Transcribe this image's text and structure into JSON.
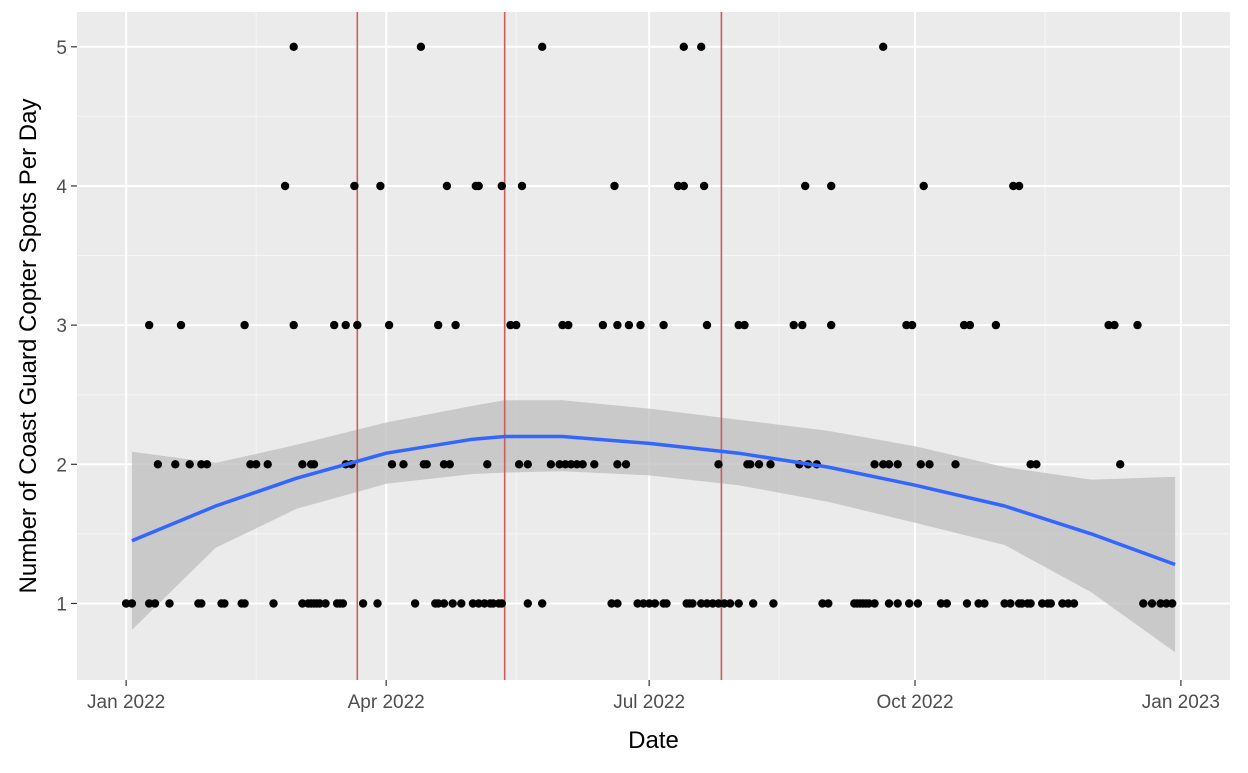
{
  "chart_data": {
    "type": "scatter",
    "xlabel": "Date",
    "ylabel": "Number of Coast Guard Copter Spots Per Day",
    "xlim": [
      "2021-12-15",
      "2023-01-18"
    ],
    "ylim": [
      0.45,
      5.25
    ],
    "x_ticks": [
      {
        "date": "2022-01-01",
        "label": "Jan 2022"
      },
      {
        "date": "2022-04-01",
        "label": "Apr 2022"
      },
      {
        "date": "2022-07-01",
        "label": "Jul 2022"
      },
      {
        "date": "2022-10-01",
        "label": "Oct 2022"
      },
      {
        "date": "2023-01-01",
        "label": "Jan 2023"
      }
    ],
    "x_minor_ticks": [
      "2022-02-15",
      "2022-05-16",
      "2022-08-15",
      "2022-11-15"
    ],
    "y_ticks": [
      1,
      2,
      3,
      4,
      5
    ],
    "grid": true,
    "points_color": "#000000",
    "vlines": {
      "color": "#cd5c5c",
      "dates": [
        "2022-03-22",
        "2022-05-12",
        "2022-07-26"
      ]
    },
    "smooth": {
      "color": "#3366ff",
      "band_color": "#bebebe",
      "x": [
        "2022-01-03",
        "2022-02-01",
        "2022-03-01",
        "2022-04-01",
        "2022-05-01",
        "2022-05-12",
        "2022-06-01",
        "2022-07-01",
        "2022-08-01",
        "2022-09-01",
        "2022-10-01",
        "2022-11-01",
        "2022-12-01",
        "2022-12-30"
      ],
      "y": [
        1.45,
        1.7,
        1.9,
        2.08,
        2.18,
        2.2,
        2.2,
        2.15,
        2.08,
        1.98,
        1.85,
        1.7,
        1.5,
        1.28
      ],
      "lower": [
        0.81,
        1.4,
        1.68,
        1.86,
        1.93,
        1.94,
        1.95,
        1.92,
        1.85,
        1.73,
        1.58,
        1.42,
        1.08,
        0.65
      ],
      "upper": [
        2.09,
        2.01,
        2.14,
        2.3,
        2.42,
        2.46,
        2.46,
        2.4,
        2.32,
        2.24,
        2.13,
        1.98,
        1.89,
        1.91
      ]
    },
    "points": [
      {
        "x": "2022-01-01",
        "y": 1
      },
      {
        "x": "2022-01-03",
        "y": 1
      },
      {
        "x": "2022-01-09",
        "y": 1
      },
      {
        "x": "2022-01-11",
        "y": 1
      },
      {
        "x": "2022-01-16",
        "y": 1
      },
      {
        "x": "2022-01-26",
        "y": 1
      },
      {
        "x": "2022-01-27",
        "y": 1
      },
      {
        "x": "2022-02-03",
        "y": 1
      },
      {
        "x": "2022-02-04",
        "y": 1
      },
      {
        "x": "2022-02-10",
        "y": 1
      },
      {
        "x": "2022-02-11",
        "y": 1
      },
      {
        "x": "2022-02-21",
        "y": 1
      },
      {
        "x": "2022-03-03",
        "y": 1
      },
      {
        "x": "2022-03-05",
        "y": 1
      },
      {
        "x": "2022-03-06",
        "y": 1
      },
      {
        "x": "2022-03-07",
        "y": 1
      },
      {
        "x": "2022-03-08",
        "y": 1
      },
      {
        "x": "2022-03-09",
        "y": 1
      },
      {
        "x": "2022-03-11",
        "y": 1
      },
      {
        "x": "2022-03-15",
        "y": 1
      },
      {
        "x": "2022-03-16",
        "y": 1
      },
      {
        "x": "2022-03-17",
        "y": 1
      },
      {
        "x": "2022-03-24",
        "y": 1
      },
      {
        "x": "2022-03-29",
        "y": 1
      },
      {
        "x": "2022-04-11",
        "y": 1
      },
      {
        "x": "2022-04-18",
        "y": 1
      },
      {
        "x": "2022-04-19",
        "y": 1
      },
      {
        "x": "2022-04-21",
        "y": 1
      },
      {
        "x": "2022-04-24",
        "y": 1
      },
      {
        "x": "2022-04-27",
        "y": 1
      },
      {
        "x": "2022-05-01",
        "y": 1
      },
      {
        "x": "2022-05-03",
        "y": 1
      },
      {
        "x": "2022-05-05",
        "y": 1
      },
      {
        "x": "2022-05-07",
        "y": 1
      },
      {
        "x": "2022-05-08",
        "y": 1
      },
      {
        "x": "2022-05-10",
        "y": 1
      },
      {
        "x": "2022-05-11",
        "y": 1
      },
      {
        "x": "2022-05-20",
        "y": 1
      },
      {
        "x": "2022-05-25",
        "y": 1
      },
      {
        "x": "2022-06-18",
        "y": 1
      },
      {
        "x": "2022-06-20",
        "y": 1
      },
      {
        "x": "2022-06-27",
        "y": 1
      },
      {
        "x": "2022-06-29",
        "y": 1
      },
      {
        "x": "2022-07-01",
        "y": 1
      },
      {
        "x": "2022-07-03",
        "y": 1
      },
      {
        "x": "2022-07-06",
        "y": 1
      },
      {
        "x": "2022-07-07",
        "y": 1
      },
      {
        "x": "2022-07-14",
        "y": 1
      },
      {
        "x": "2022-07-15",
        "y": 1
      },
      {
        "x": "2022-07-16",
        "y": 1
      },
      {
        "x": "2022-07-19",
        "y": 1
      },
      {
        "x": "2022-07-21",
        "y": 1
      },
      {
        "x": "2022-07-23",
        "y": 1
      },
      {
        "x": "2022-07-25",
        "y": 1
      },
      {
        "x": "2022-07-27",
        "y": 1
      },
      {
        "x": "2022-07-29",
        "y": 1
      },
      {
        "x": "2022-08-01",
        "y": 1
      },
      {
        "x": "2022-08-06",
        "y": 1
      },
      {
        "x": "2022-08-13",
        "y": 1
      },
      {
        "x": "2022-08-30",
        "y": 1
      },
      {
        "x": "2022-09-01",
        "y": 1
      },
      {
        "x": "2022-09-10",
        "y": 1
      },
      {
        "x": "2022-09-11",
        "y": 1
      },
      {
        "x": "2022-09-12",
        "y": 1
      },
      {
        "x": "2022-09-13",
        "y": 1
      },
      {
        "x": "2022-09-14",
        "y": 1
      },
      {
        "x": "2022-09-15",
        "y": 1
      },
      {
        "x": "2022-09-17",
        "y": 1
      },
      {
        "x": "2022-09-22",
        "y": 1
      },
      {
        "x": "2022-09-25",
        "y": 1
      },
      {
        "x": "2022-09-29",
        "y": 1
      },
      {
        "x": "2022-10-02",
        "y": 1
      },
      {
        "x": "2022-10-10",
        "y": 1
      },
      {
        "x": "2022-10-12",
        "y": 1
      },
      {
        "x": "2022-10-19",
        "y": 1
      },
      {
        "x": "2022-10-23",
        "y": 1
      },
      {
        "x": "2022-10-25",
        "y": 1
      },
      {
        "x": "2022-11-01",
        "y": 1
      },
      {
        "x": "2022-11-03",
        "y": 1
      },
      {
        "x": "2022-11-06",
        "y": 1
      },
      {
        "x": "2022-11-07",
        "y": 1
      },
      {
        "x": "2022-11-09",
        "y": 1
      },
      {
        "x": "2022-11-10",
        "y": 1
      },
      {
        "x": "2022-11-14",
        "y": 1
      },
      {
        "x": "2022-11-16",
        "y": 1
      },
      {
        "x": "2022-11-17",
        "y": 1
      },
      {
        "x": "2022-11-21",
        "y": 1
      },
      {
        "x": "2022-11-23",
        "y": 1
      },
      {
        "x": "2022-11-25",
        "y": 1
      },
      {
        "x": "2022-12-19",
        "y": 1
      },
      {
        "x": "2022-12-22",
        "y": 1
      },
      {
        "x": "2022-12-25",
        "y": 1
      },
      {
        "x": "2022-12-27",
        "y": 1
      },
      {
        "x": "2022-12-29",
        "y": 1
      },
      {
        "x": "2022-01-12",
        "y": 2
      },
      {
        "x": "2022-01-18",
        "y": 2
      },
      {
        "x": "2022-01-23",
        "y": 2
      },
      {
        "x": "2022-01-27",
        "y": 2
      },
      {
        "x": "2022-01-29",
        "y": 2
      },
      {
        "x": "2022-02-13",
        "y": 2
      },
      {
        "x": "2022-02-15",
        "y": 2
      },
      {
        "x": "2022-02-19",
        "y": 2
      },
      {
        "x": "2022-03-03",
        "y": 2
      },
      {
        "x": "2022-03-06",
        "y": 2
      },
      {
        "x": "2022-03-07",
        "y": 2
      },
      {
        "x": "2022-03-18",
        "y": 2
      },
      {
        "x": "2022-03-20",
        "y": 2
      },
      {
        "x": "2022-04-03",
        "y": 2
      },
      {
        "x": "2022-04-07",
        "y": 2
      },
      {
        "x": "2022-04-14",
        "y": 2
      },
      {
        "x": "2022-04-15",
        "y": 2
      },
      {
        "x": "2022-04-21",
        "y": 2
      },
      {
        "x": "2022-04-23",
        "y": 2
      },
      {
        "x": "2022-05-06",
        "y": 2
      },
      {
        "x": "2022-05-17",
        "y": 2
      },
      {
        "x": "2022-05-20",
        "y": 2
      },
      {
        "x": "2022-05-28",
        "y": 2
      },
      {
        "x": "2022-05-31",
        "y": 2
      },
      {
        "x": "2022-06-02",
        "y": 2
      },
      {
        "x": "2022-06-04",
        "y": 2
      },
      {
        "x": "2022-06-06",
        "y": 2
      },
      {
        "x": "2022-06-08",
        "y": 2
      },
      {
        "x": "2022-06-12",
        "y": 2
      },
      {
        "x": "2022-06-20",
        "y": 2
      },
      {
        "x": "2022-06-23",
        "y": 2
      },
      {
        "x": "2022-07-25",
        "y": 2
      },
      {
        "x": "2022-08-04",
        "y": 2
      },
      {
        "x": "2022-08-05",
        "y": 2
      },
      {
        "x": "2022-08-08",
        "y": 2
      },
      {
        "x": "2022-08-12",
        "y": 2
      },
      {
        "x": "2022-08-22",
        "y": 2
      },
      {
        "x": "2022-08-25",
        "y": 2
      },
      {
        "x": "2022-08-28",
        "y": 2
      },
      {
        "x": "2022-09-17",
        "y": 2
      },
      {
        "x": "2022-09-20",
        "y": 2
      },
      {
        "x": "2022-09-22",
        "y": 2
      },
      {
        "x": "2022-09-25",
        "y": 2
      },
      {
        "x": "2022-10-03",
        "y": 2
      },
      {
        "x": "2022-10-06",
        "y": 2
      },
      {
        "x": "2022-10-15",
        "y": 2
      },
      {
        "x": "2022-11-10",
        "y": 2
      },
      {
        "x": "2022-11-12",
        "y": 2
      },
      {
        "x": "2022-12-11",
        "y": 2
      },
      {
        "x": "2022-01-09",
        "y": 3
      },
      {
        "x": "2022-01-20",
        "y": 3
      },
      {
        "x": "2022-02-11",
        "y": 3
      },
      {
        "x": "2022-02-28",
        "y": 3
      },
      {
        "x": "2022-03-14",
        "y": 3
      },
      {
        "x": "2022-03-18",
        "y": 3
      },
      {
        "x": "2022-03-22",
        "y": 3
      },
      {
        "x": "2022-04-02",
        "y": 3
      },
      {
        "x": "2022-04-19",
        "y": 3
      },
      {
        "x": "2022-04-25",
        "y": 3
      },
      {
        "x": "2022-05-14",
        "y": 3
      },
      {
        "x": "2022-05-16",
        "y": 3
      },
      {
        "x": "2022-06-01",
        "y": 3
      },
      {
        "x": "2022-06-03",
        "y": 3
      },
      {
        "x": "2022-06-15",
        "y": 3
      },
      {
        "x": "2022-06-20",
        "y": 3
      },
      {
        "x": "2022-06-24",
        "y": 3
      },
      {
        "x": "2022-06-28",
        "y": 3
      },
      {
        "x": "2022-07-06",
        "y": 3
      },
      {
        "x": "2022-07-21",
        "y": 3
      },
      {
        "x": "2022-08-01",
        "y": 3
      },
      {
        "x": "2022-08-03",
        "y": 3
      },
      {
        "x": "2022-08-20",
        "y": 3
      },
      {
        "x": "2022-08-23",
        "y": 3
      },
      {
        "x": "2022-09-02",
        "y": 3
      },
      {
        "x": "2022-09-28",
        "y": 3
      },
      {
        "x": "2022-09-30",
        "y": 3
      },
      {
        "x": "2022-10-18",
        "y": 3
      },
      {
        "x": "2022-10-20",
        "y": 3
      },
      {
        "x": "2022-10-29",
        "y": 3
      },
      {
        "x": "2022-12-07",
        "y": 3
      },
      {
        "x": "2022-12-09",
        "y": 3
      },
      {
        "x": "2022-12-17",
        "y": 3
      },
      {
        "x": "2022-02-25",
        "y": 4
      },
      {
        "x": "2022-03-21",
        "y": 4
      },
      {
        "x": "2022-03-30",
        "y": 4
      },
      {
        "x": "2022-04-22",
        "y": 4
      },
      {
        "x": "2022-05-02",
        "y": 4
      },
      {
        "x": "2022-05-03",
        "y": 4
      },
      {
        "x": "2022-05-11",
        "y": 4
      },
      {
        "x": "2022-05-18",
        "y": 4
      },
      {
        "x": "2022-06-19",
        "y": 4
      },
      {
        "x": "2022-07-11",
        "y": 4
      },
      {
        "x": "2022-07-13",
        "y": 4
      },
      {
        "x": "2022-07-20",
        "y": 4
      },
      {
        "x": "2022-08-24",
        "y": 4
      },
      {
        "x": "2022-09-02",
        "y": 4
      },
      {
        "x": "2022-10-04",
        "y": 4
      },
      {
        "x": "2022-11-04",
        "y": 4
      },
      {
        "x": "2022-11-06",
        "y": 4
      },
      {
        "x": "2022-02-28",
        "y": 5
      },
      {
        "x": "2022-04-13",
        "y": 5
      },
      {
        "x": "2022-05-25",
        "y": 5
      },
      {
        "x": "2022-07-13",
        "y": 5
      },
      {
        "x": "2022-07-19",
        "y": 5
      },
      {
        "x": "2022-09-20",
        "y": 5
      }
    ]
  }
}
